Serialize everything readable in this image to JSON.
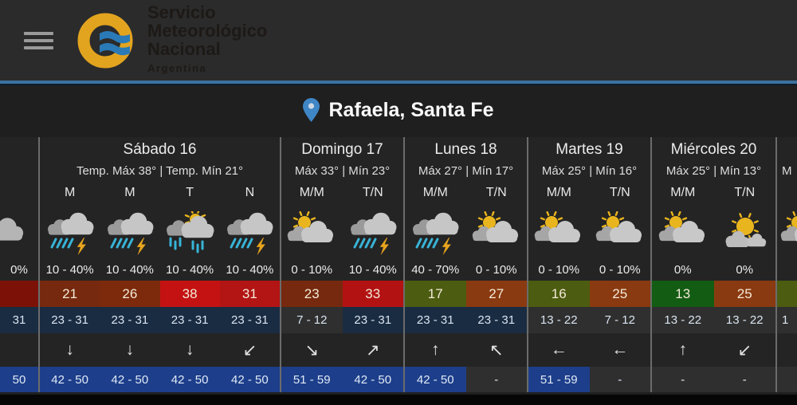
{
  "header": {
    "logo_lines": [
      "Servicio",
      "Meteorológico",
      "Nacional"
    ],
    "logo_country": "Argentina",
    "accent_color": "#3a72a0"
  },
  "location": {
    "title": "Rafaela, Santa Fe"
  },
  "forecast": {
    "columns": [
      {
        "kind": "partial-left",
        "name": "",
        "temp_line": "",
        "periods": [
          {
            "label": "",
            "icon": "cloud-only",
            "precip": "0%",
            "temp": "",
            "temp_bg": "#7c1207",
            "range": "31",
            "range_bg": "#1a2c42",
            "arrow": "",
            "wind": "50",
            "wind_bg": "#1d3e8a"
          }
        ]
      },
      {
        "kind": "day",
        "name": "Sábado 16",
        "temp_line": "Temp. Máx 38° | Temp. Mín 21°",
        "periods": [
          {
            "label": "M",
            "icon": "storm",
            "precip": "10 - 40%",
            "temp": "21",
            "temp_bg": "#76290e",
            "range": "23 - 31",
            "range_bg": "#1a2c42",
            "arrow": "↓",
            "wind": "42 - 50",
            "wind_bg": "#1d3e8a"
          },
          {
            "label": "M",
            "icon": "storm",
            "precip": "10 - 40%",
            "temp": "26",
            "temp_bg": "#7d2a0c",
            "range": "23 - 31",
            "range_bg": "#1a2c42",
            "arrow": "↓",
            "wind": "42 - 50",
            "wind_bg": "#1d3e8a"
          },
          {
            "label": "T",
            "icon": "sun-rain",
            "precip": "10 - 40%",
            "temp": "38",
            "temp_bg": "#c41212",
            "range": "23 - 31",
            "range_bg": "#1a2c42",
            "arrow": "↓",
            "wind": "42 - 50",
            "wind_bg": "#1d3e8a"
          },
          {
            "label": "N",
            "icon": "storm",
            "precip": "10 - 40%",
            "temp": "31",
            "temp_bg": "#b31414",
            "range": "23 - 31",
            "range_bg": "#1a2c42",
            "arrow": "↙",
            "wind": "42 - 50",
            "wind_bg": "#1d3e8a"
          }
        ]
      },
      {
        "kind": "day",
        "name": "Domingo 17",
        "temp_line": "Máx 33° | Mín 23°",
        "periods": [
          {
            "label": "M/M",
            "icon": "partly-cloudy",
            "precip": "0 - 10%",
            "temp": "23",
            "temp_bg": "#76290e",
            "range": "7 - 12",
            "range_bg": "#2f2f2f",
            "arrow": "↘",
            "wind": "51 - 59",
            "wind_bg": "#1d3e8a"
          },
          {
            "label": "T/N",
            "icon": "storm",
            "precip": "10 - 40%",
            "temp": "33",
            "temp_bg": "#b31212",
            "range": "23 - 31",
            "range_bg": "#1a2c42",
            "arrow": "↗",
            "wind": "42 - 50",
            "wind_bg": "#1d3e8a"
          }
        ]
      },
      {
        "kind": "day",
        "name": "Lunes 18",
        "temp_line": "Máx 27° | Mín 17°",
        "periods": [
          {
            "label": "M/M",
            "icon": "storm",
            "precip": "40 - 70%",
            "temp": "17",
            "temp_bg": "#4c5c10",
            "range": "23 - 31",
            "range_bg": "#1a2c42",
            "arrow": "↑",
            "wind": "42 - 50",
            "wind_bg": "#1d3e8a"
          },
          {
            "label": "T/N",
            "icon": "partly-cloudy",
            "precip": "0 - 10%",
            "temp": "27",
            "temp_bg": "#8a3a10",
            "range": "23 - 31",
            "range_bg": "#1a2c42",
            "arrow": "↖",
            "wind": "-",
            "wind_bg": "#2f2f2f"
          }
        ]
      },
      {
        "kind": "day",
        "name": "Martes 19",
        "temp_line": "Máx 25° | Mín 16°",
        "periods": [
          {
            "label": "M/M",
            "icon": "partly-cloudy",
            "precip": "0 - 10%",
            "temp": "16",
            "temp_bg": "#4c5c10",
            "range": "13 - 22",
            "range_bg": "#2f2f2f",
            "arrow": "←",
            "wind": "51 - 59",
            "wind_bg": "#1d3e8a"
          },
          {
            "label": "T/N",
            "icon": "partly-cloudy",
            "precip": "0 - 10%",
            "temp": "25",
            "temp_bg": "#8a3a10",
            "range": "7 - 12",
            "range_bg": "#2f2f2f",
            "arrow": "←",
            "wind": "-",
            "wind_bg": "#2f2f2f"
          }
        ]
      },
      {
        "kind": "day",
        "name": "Miércoles 20",
        "temp_line": "Máx 25° | Mín 13°",
        "periods": [
          {
            "label": "M/M",
            "icon": "partly-cloudy",
            "precip": "0%",
            "temp": "13",
            "temp_bg": "#135c13",
            "range": "13 - 22",
            "range_bg": "#2f2f2f",
            "arrow": "↑",
            "wind": "-",
            "wind_bg": "#2f2f2f"
          },
          {
            "label": "T/N",
            "icon": "sunny-cloud",
            "precip": "0%",
            "temp": "25",
            "temp_bg": "#8a3a10",
            "range": "13 - 22",
            "range_bg": "#2f2f2f",
            "arrow": "↙",
            "wind": "-",
            "wind_bg": "#2f2f2f"
          }
        ]
      },
      {
        "kind": "partial-right",
        "name": "",
        "temp_line": "M",
        "periods": [
          {
            "label": "",
            "icon": "partly-cloudy",
            "precip": "",
            "temp": "",
            "temp_bg": "#4c5c10",
            "range": "1",
            "range_bg": "#2f2f2f",
            "arrow": "",
            "wind": "",
            "wind_bg": "#2f2f2f"
          }
        ]
      }
    ]
  }
}
